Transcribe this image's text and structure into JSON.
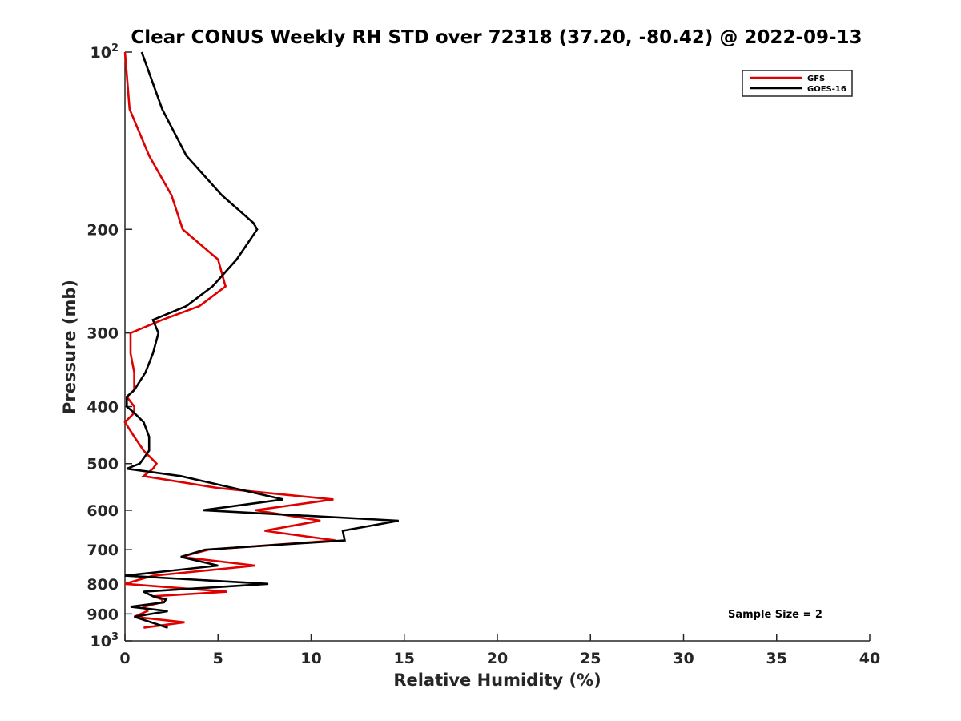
{
  "chart_data": {
    "type": "line",
    "title": "Clear CONUS Weekly RH STD over 72318 (37.20, -80.42) @ 2022-09-13",
    "xlabel": "Relative Humidity (%)",
    "ylabel": "Pressure (mb)",
    "xlim": [
      0,
      40
    ],
    "ylim": [
      100,
      1000
    ],
    "y_scale": "log",
    "y_reversed": true,
    "grid": false,
    "legend_position": "top-right",
    "x_ticks": [
      "0",
      "5",
      "10",
      "15",
      "20",
      "25",
      "30",
      "35",
      "40"
    ],
    "y_ticks": [
      {
        "value": 100,
        "base": "10",
        "exp": "2"
      },
      {
        "value": 200,
        "label": "200"
      },
      {
        "value": 300,
        "label": "300"
      },
      {
        "value": 400,
        "label": "400"
      },
      {
        "value": 500,
        "label": "500"
      },
      {
        "value": 600,
        "label": "600"
      },
      {
        "value": 700,
        "label": "700"
      },
      {
        "value": 800,
        "label": "800"
      },
      {
        "value": 900,
        "label": "900"
      },
      {
        "value": 1000,
        "base": "10",
        "exp": "3"
      }
    ],
    "annotation": "Sample Size = 2",
    "series": [
      {
        "name": "GFS",
        "color": "#e00000",
        "points": [
          [
            0.0,
            100
          ],
          [
            0.25,
            125
          ],
          [
            1.3,
            150
          ],
          [
            2.5,
            175
          ],
          [
            3.1,
            200
          ],
          [
            5.0,
            225
          ],
          [
            5.4,
            250
          ],
          [
            4.0,
            270
          ],
          [
            2.0,
            285
          ],
          [
            0.3,
            300
          ],
          [
            0.3,
            325
          ],
          [
            0.5,
            350
          ],
          [
            0.5,
            375
          ],
          [
            0.1,
            385
          ],
          [
            0.5,
            400
          ],
          [
            0.5,
            410
          ],
          [
            0.0,
            425
          ],
          [
            0.5,
            450
          ],
          [
            1.0,
            475
          ],
          [
            1.7,
            500
          ],
          [
            1.5,
            510
          ],
          [
            1.0,
            525
          ],
          [
            5.0,
            550
          ],
          [
            11.2,
            575
          ],
          [
            7.0,
            600
          ],
          [
            10.5,
            625
          ],
          [
            7.5,
            650
          ],
          [
            11.3,
            675
          ],
          [
            4.5,
            700
          ],
          [
            3.0,
            720
          ],
          [
            7.0,
            745
          ],
          [
            1.5,
            775
          ],
          [
            0.0,
            800
          ],
          [
            5.5,
            825
          ],
          [
            1.5,
            840
          ],
          [
            2.0,
            850
          ],
          [
            2.0,
            860
          ],
          [
            1.0,
            875
          ],
          [
            1.2,
            890
          ],
          [
            0.5,
            910
          ],
          [
            3.2,
            930
          ],
          [
            1.0,
            950
          ]
        ]
      },
      {
        "name": "GOES-16",
        "color": "#000000",
        "points": [
          [
            0.9,
            100
          ],
          [
            2.0,
            125
          ],
          [
            3.3,
            150
          ],
          [
            5.2,
            175
          ],
          [
            6.9,
            195
          ],
          [
            7.1,
            200
          ],
          [
            6.0,
            225
          ],
          [
            4.7,
            250
          ],
          [
            3.3,
            270
          ],
          [
            1.5,
            285
          ],
          [
            1.8,
            300
          ],
          [
            1.5,
            325
          ],
          [
            1.1,
            350
          ],
          [
            0.5,
            375
          ],
          [
            0.1,
            385
          ],
          [
            0.1,
            400
          ],
          [
            0.5,
            410
          ],
          [
            1.0,
            425
          ],
          [
            1.3,
            450
          ],
          [
            1.3,
            475
          ],
          [
            0.8,
            500
          ],
          [
            0.1,
            510
          ],
          [
            3.0,
            525
          ],
          [
            8.5,
            575
          ],
          [
            4.2,
            600
          ],
          [
            14.7,
            625
          ],
          [
            11.7,
            650
          ],
          [
            11.8,
            675
          ],
          [
            4.3,
            700
          ],
          [
            3.0,
            720
          ],
          [
            5.0,
            745
          ],
          [
            0.0,
            775
          ],
          [
            7.7,
            800
          ],
          [
            1.0,
            825
          ],
          [
            1.5,
            840
          ],
          [
            2.2,
            850
          ],
          [
            2.1,
            860
          ],
          [
            0.3,
            875
          ],
          [
            2.3,
            890
          ],
          [
            0.5,
            910
          ],
          [
            2.3,
            950
          ]
        ]
      }
    ]
  }
}
